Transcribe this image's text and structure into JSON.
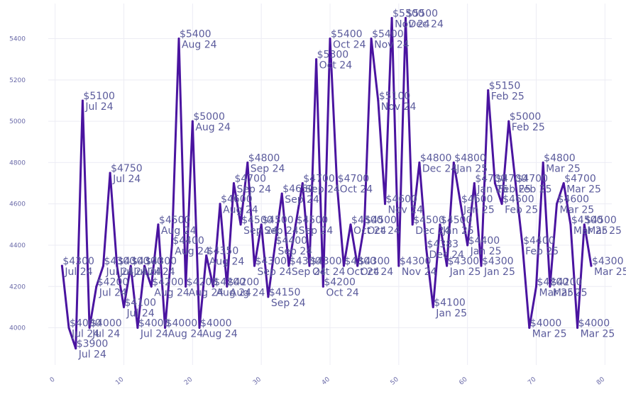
{
  "chart_data": {
    "type": "line",
    "title": "",
    "xlabel": "",
    "ylabel": "",
    "xlim": [
      -1,
      81
    ],
    "ylim": [
      3820,
      5570
    ],
    "x_ticks": [
      0,
      10,
      20,
      30,
      40,
      50,
      60,
      70,
      80
    ],
    "y_ticks": [
      4000,
      4200,
      4400,
      4600,
      4800,
      5000,
      5200,
      5400
    ],
    "grid": true,
    "line_color": "#4a14a0",
    "points": [
      {
        "x": 1,
        "y": 4300,
        "label": "$4300\nJul 24"
      },
      {
        "x": 2,
        "y": 4000,
        "label": "$4000\nJul 24"
      },
      {
        "x": 3,
        "y": 3900,
        "label": "$3900\nJul 24"
      },
      {
        "x": 4,
        "y": 5100,
        "label": "$5100\nJul 24"
      },
      {
        "x": 5,
        "y": 4000,
        "label": "$4000\nJul 24"
      },
      {
        "x": 6,
        "y": 4200,
        "label": "$4200\nJul 24"
      },
      {
        "x": 7,
        "y": 4300,
        "label": "$4300\nJul 24"
      },
      {
        "x": 8,
        "y": 4750,
        "label": "$4750\nJul 24"
      },
      {
        "x": 9,
        "y": 4300,
        "label": "$4300\nJul 24"
      },
      {
        "x": 10,
        "y": 4100,
        "label": "$4100\nJul 24"
      },
      {
        "x": 11,
        "y": 4300,
        "label": "$4300\nJul 24"
      },
      {
        "x": 12,
        "y": 4000,
        "label": "$4000\nJul 24"
      },
      {
        "x": 13,
        "y": 4300,
        "label": "$4300\nJul 24"
      },
      {
        "x": 14,
        "y": 4200,
        "label": "$4200\nAug 24"
      },
      {
        "x": 15,
        "y": 4500,
        "label": "$4500\nAug 24"
      },
      {
        "x": 16,
        "y": 4000,
        "label": "$4000\nAug 24"
      },
      {
        "x": 17,
        "y": 4400,
        "label": "$4400\nAug 24"
      },
      {
        "x": 18,
        "y": 5400,
        "label": "$5400\nAug 24"
      },
      {
        "x": 19,
        "y": 4200,
        "label": "$4200\nAug 24"
      },
      {
        "x": 20,
        "y": 5000,
        "label": "$5000\nAug 24"
      },
      {
        "x": 21,
        "y": 4000,
        "label": "$4000\nAug 24"
      },
      {
        "x": 22,
        "y": 4350,
        "label": "$4350\nAug 24"
      },
      {
        "x": 23,
        "y": 4200,
        "label": "$4200\nAug 24"
      },
      {
        "x": 24,
        "y": 4600,
        "label": "$4600\nAug 24"
      },
      {
        "x": 25,
        "y": 4200,
        "label": "$4200\nAug 24"
      },
      {
        "x": 26,
        "y": 4700,
        "label": "$4700\nSep 24"
      },
      {
        "x": 27,
        "y": 4500,
        "label": "$4500\nSep 24"
      },
      {
        "x": 28,
        "y": 4800,
        "label": "$4800\nSep 24"
      },
      {
        "x": 29,
        "y": 4300,
        "label": "$4300\nSep 24"
      },
      {
        "x": 30,
        "y": 4500,
        "label": "$4500\nSep 24"
      },
      {
        "x": 31,
        "y": 4150,
        "label": "$4150\nSep 24"
      },
      {
        "x": 32,
        "y": 4400,
        "label": "$4400\nSep 24"
      },
      {
        "x": 33,
        "y": 4650,
        "label": "$4650\nSep 24"
      },
      {
        "x": 34,
        "y": 4300,
        "label": "$4300\nSep 24"
      },
      {
        "x": 35,
        "y": 4500,
        "label": "$4500\nSep 24"
      },
      {
        "x": 36,
        "y": 4700,
        "label": "$4700\nSep 24"
      },
      {
        "x": 37,
        "y": 4300,
        "label": "$4300\nOct 24"
      },
      {
        "x": 38,
        "y": 5300,
        "label": "$5300\nOct 24"
      },
      {
        "x": 39,
        "y": 4200,
        "label": "$4200\nOct 24"
      },
      {
        "x": 40,
        "y": 5400,
        "label": "$5400\nOct 24"
      },
      {
        "x": 41,
        "y": 4700,
        "label": "$4700\nOct 24"
      },
      {
        "x": 42,
        "y": 4300,
        "label": "$4300\nOct 24"
      },
      {
        "x": 43,
        "y": 4500,
        "label": "$4500\nOct 24"
      },
      {
        "x": 44,
        "y": 4300,
        "label": "$4300\nOct 24"
      },
      {
        "x": 45,
        "y": 4500,
        "label": "$4500\nOct 24"
      },
      {
        "x": 46,
        "y": 5400,
        "label": "$5400\nNov 24"
      },
      {
        "x": 47,
        "y": 5100,
        "label": "$5100\nNov 24"
      },
      {
        "x": 48,
        "y": 4600,
        "label": "$4600\nNov 24"
      },
      {
        "x": 49,
        "y": 5500,
        "label": "$5500\nNov 24"
      },
      {
        "x": 50,
        "y": 4300,
        "label": "$4300\nNov 24"
      },
      {
        "x": 51,
        "y": 5500,
        "label": "$5500\nDec 24"
      },
      {
        "x": 52,
        "y": 4500,
        "label": "$4500\nDec 24"
      },
      {
        "x": 53,
        "y": 4800,
        "label": "$4800\nDec 24"
      },
      {
        "x": 54,
        "y": 4383,
        "label": "$4383\nDec 24"
      },
      {
        "x": 55,
        "y": 4100,
        "label": "$4100\nJan 25"
      },
      {
        "x": 56,
        "y": 4500,
        "label": "$4500\nJan 25"
      },
      {
        "x": 57,
        "y": 4300,
        "label": "$4300\nJan 25"
      },
      {
        "x": 58,
        "y": 4800,
        "label": "$4800\nJan 25"
      },
      {
        "x": 59,
        "y": 4600,
        "label": "$4600\nJan 25"
      },
      {
        "x": 60,
        "y": 4400,
        "label": "$4400\nJan 25"
      },
      {
        "x": 61,
        "y": 4700,
        "label": "$4700\nJan 25"
      },
      {
        "x": 62,
        "y": 4300,
        "label": "$4300\nJan 25"
      },
      {
        "x": 63,
        "y": 5150,
        "label": "$5150\nFeb 25"
      },
      {
        "x": 64,
        "y": 4700,
        "label": "$4700\nFeb 25"
      },
      {
        "x": 65,
        "y": 4600,
        "label": "$4600\nFeb 25"
      },
      {
        "x": 66,
        "y": 5000,
        "label": "$5000\nFeb 25"
      },
      {
        "x": 67,
        "y": 4700,
        "label": "$4700\nFeb 25"
      },
      {
        "x": 68,
        "y": 4400,
        "label": "$4400\nFeb 25"
      },
      {
        "x": 69,
        "y": 4000,
        "label": "$4000\nMar 25"
      },
      {
        "x": 70,
        "y": 4200,
        "label": "$4200\nMar 25"
      },
      {
        "x": 71,
        "y": 4800,
        "label": "$4800\nMar 25"
      },
      {
        "x": 72,
        "y": 4200,
        "label": "$4200\nMar 25"
      },
      {
        "x": 73,
        "y": 4600,
        "label": "$4600\nMar 25"
      },
      {
        "x": 74,
        "y": 4700,
        "label": "$4700\nMar 25"
      },
      {
        "x": 75,
        "y": 4500,
        "label": "$4500\nMar 25"
      },
      {
        "x": 76,
        "y": 4000,
        "label": "$4000\nMar 25"
      },
      {
        "x": 77,
        "y": 4500,
        "label": "$4500\nMar 25"
      },
      {
        "x": 78,
        "y": 4300,
        "label": "$4300\nMar 25"
      }
    ]
  }
}
